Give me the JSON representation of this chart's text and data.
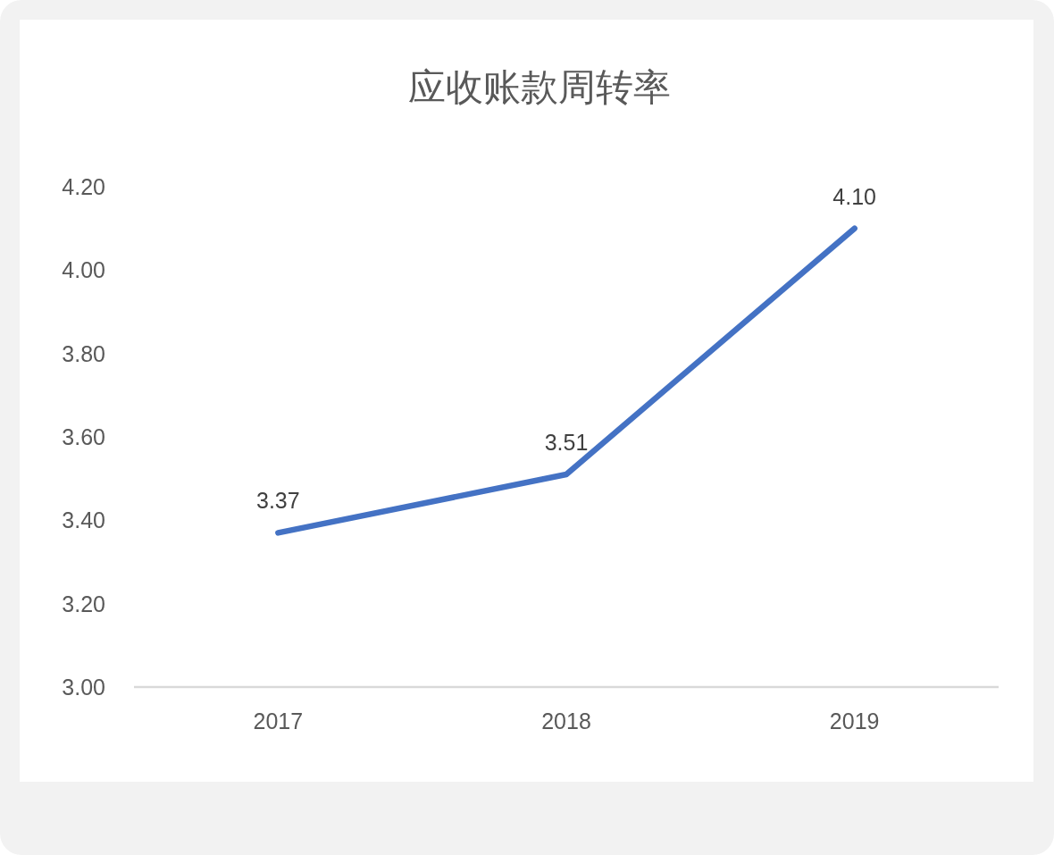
{
  "chart_data": {
    "type": "line",
    "title": "应收账款周转率",
    "categories": [
      "2017",
      "2018",
      "2019"
    ],
    "values": [
      3.37,
      3.51,
      4.1
    ],
    "value_labels": [
      "3.37",
      "3.51",
      "4.10"
    ],
    "color": "#4472c4",
    "ylim": [
      3,
      4.2
    ],
    "yticks": [
      {
        "value": 3,
        "label": "3.00"
      },
      {
        "value": 3.2,
        "label": "3.20"
      },
      {
        "value": 3.4,
        "label": "3.40"
      },
      {
        "value": 3.6,
        "label": "3.60"
      },
      {
        "value": 3.8,
        "label": "3.80"
      },
      {
        "value": 4,
        "label": "4.00"
      },
      {
        "value": 4.2,
        "label": "4.20"
      }
    ]
  }
}
